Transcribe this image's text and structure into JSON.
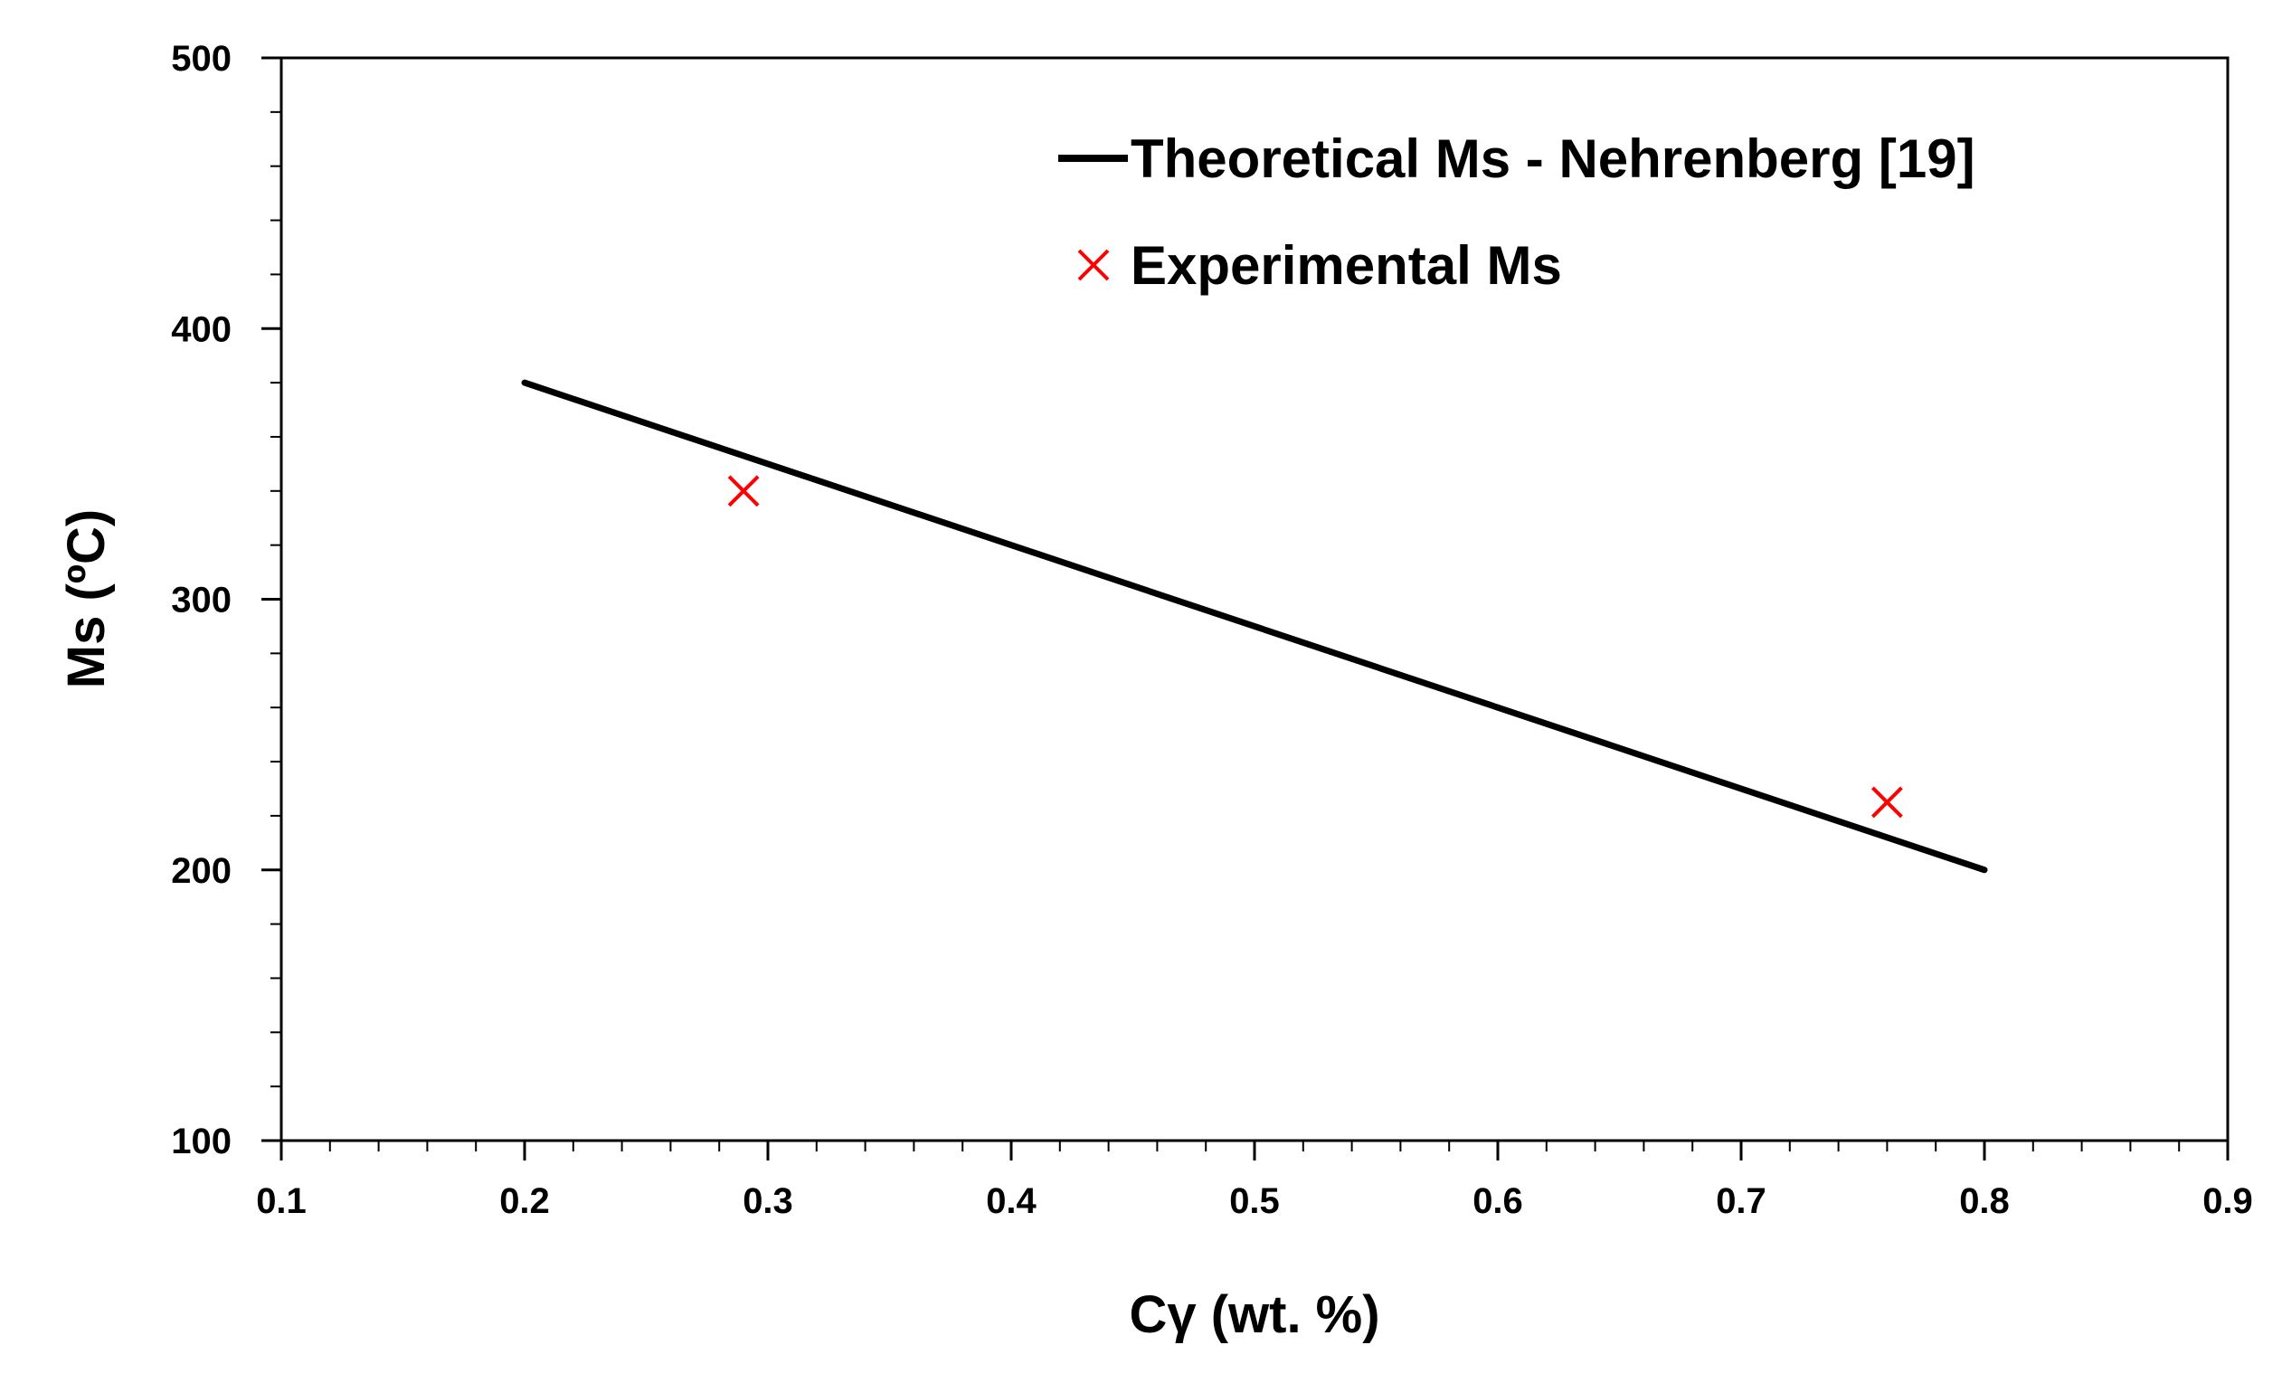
{
  "chart_data": {
    "type": "line",
    "title": "",
    "xlabel": "Cγ (wt. %)",
    "ylabel": "Ms (ºC)",
    "xlim": [
      0.1,
      0.9
    ],
    "ylim": [
      100,
      500
    ],
    "x_ticks": [
      "0.1",
      "0.2",
      "0.3",
      "0.4",
      "0.5",
      "0.6",
      "0.7",
      "0.8",
      "0.9"
    ],
    "y_ticks": [
      "100",
      "200",
      "300",
      "400",
      "500"
    ],
    "grid": false,
    "legend_position": "top-right",
    "series": [
      {
        "name": "Theoretical Ms - Nehrenberg [19]",
        "kind": "line",
        "color": "#000000",
        "x": [
          0.2,
          0.8
        ],
        "y": [
          380,
          200
        ]
      },
      {
        "name": "Experimental Ms",
        "kind": "scatter",
        "marker": "x",
        "color": "#ff0000",
        "x": [
          0.29,
          0.76
        ],
        "y": [
          340,
          225
        ]
      }
    ]
  }
}
